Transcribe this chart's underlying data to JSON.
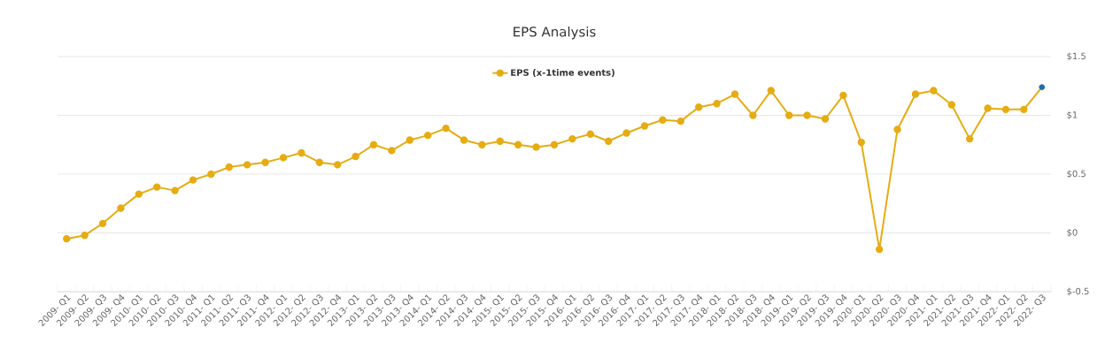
{
  "chart_data": {
    "type": "line",
    "title": "EPS Analysis",
    "categories": [
      "2009- Q1",
      "2009- Q2",
      "2009- Q3",
      "2009- Q4",
      "2010- Q1",
      "2010- Q2",
      "2010- Q3",
      "2010- Q4",
      "2011- Q1",
      "2011- Q2",
      "2011- Q3",
      "2011- Q4",
      "2012- Q1",
      "2012- Q2",
      "2012- Q3",
      "2012- Q4",
      "2013- Q1",
      "2013- Q2",
      "2013- Q3",
      "2013- Q4",
      "2014- Q1",
      "2014- Q2",
      "2014- Q3",
      "2014- Q4",
      "2015- Q1",
      "2015- Q2",
      "2015- Q3",
      "2015- Q4",
      "2016- Q1",
      "2016- Q2",
      "2016- Q3",
      "2016- Q4",
      "2017- Q1",
      "2017- Q2",
      "2017- Q3",
      "2017- Q4",
      "2018- Q1",
      "2018- Q2",
      "2018- Q3",
      "2018- Q4",
      "2019- Q1",
      "2019- Q2",
      "2019- Q3",
      "2019- Q4",
      "2020- Q1",
      "2020- Q2",
      "2020- Q3",
      "2020- Q4",
      "2021- Q1",
      "2021- Q2",
      "2021- Q3",
      "2021- Q4",
      "2022- Q1",
      "2022- Q2",
      "2022- Q3"
    ],
    "series": [
      {
        "name": "EPS (x-1time events)",
        "color": "#e6ac12",
        "values": [
          -0.05,
          -0.02,
          0.08,
          0.21,
          0.33,
          0.39,
          0.36,
          0.45,
          0.5,
          0.56,
          0.58,
          0.6,
          0.64,
          0.68,
          0.6,
          0.58,
          0.65,
          0.75,
          0.7,
          0.79,
          0.83,
          0.89,
          0.79,
          0.75,
          0.78,
          0.75,
          0.73,
          0.75,
          0.8,
          0.84,
          0.78,
          0.85,
          0.91,
          0.96,
          0.95,
          1.07,
          1.1,
          1.18,
          1.0,
          1.21,
          1.0,
          1.0,
          0.97,
          1.17,
          0.77,
          -0.14,
          0.88,
          1.18,
          1.21,
          1.09,
          0.8,
          1.06,
          1.05,
          1.05,
          1.24
        ],
        "colors": [
          "#e6ac12",
          "#e6ac12",
          "#e6ac12",
          "#e6ac12",
          "#e6ac12",
          "#e6ac12",
          "#e6ac12",
          "#e6ac12",
          "#e6ac12",
          "#e6ac12",
          "#e6ac12",
          "#e6ac12",
          "#e6ac12",
          "#e6ac12",
          "#e6ac12",
          "#e6ac12",
          "#e6ac12",
          "#e6ac12",
          "#e6ac12",
          "#e6ac12",
          "#e6ac12",
          "#e6ac12",
          "#e6ac12",
          "#e6ac12",
          "#e6ac12",
          "#e6ac12",
          "#e6ac12",
          "#e6ac12",
          "#e6ac12",
          "#e6ac12",
          "#e6ac12",
          "#e6ac12",
          "#e6ac12",
          "#e6ac12",
          "#e6ac12",
          "#e6ac12",
          "#e6ac12",
          "#e6ac12",
          "#e6ac12",
          "#e6ac12",
          "#e6ac12",
          "#e6ac12",
          "#e6ac12",
          "#e6ac12",
          "#e6ac12",
          "#e6ac12",
          "#e6ac12",
          "#e6ac12",
          "#e6ac12",
          "#e6ac12",
          "#e6ac12",
          "#e6ac12",
          "#e6ac12",
          "#e6ac12",
          "#1f6fa8"
        ]
      }
    ],
    "ylim": [
      -0.5,
      1.5
    ],
    "yticks": [
      {
        "value": -0.5,
        "label": "$-0.5"
      },
      {
        "value": 0,
        "label": "$0"
      },
      {
        "value": 0.5,
        "label": "$0.5"
      },
      {
        "value": 1,
        "label": "$1"
      },
      {
        "value": 1.5,
        "label": "$1.5"
      }
    ],
    "grid": "y",
    "legend": "top",
    "marker": "circle",
    "line_style": "solid"
  }
}
